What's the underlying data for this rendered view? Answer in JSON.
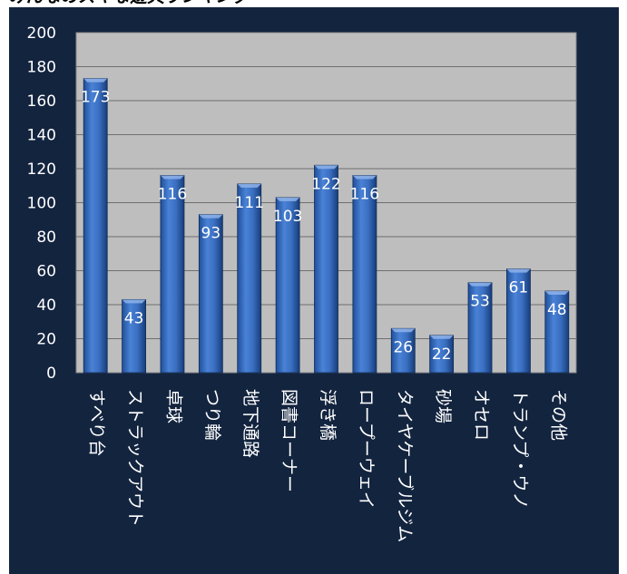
{
  "title": "みんなのスキな遊具ランキング",
  "colors": {
    "panel_background": "#13243f",
    "plot_background": "#bebebe",
    "bar_fill": "#3a6fc1",
    "gridline": "#6f6f6f",
    "label_text": "#ffffff"
  },
  "chart_data": {
    "type": "bar",
    "title": "みんなのスキな遊具ランキング",
    "xlabel": "",
    "ylabel": "",
    "ylim": [
      0,
      200
    ],
    "y_ticks": [
      0,
      20,
      40,
      60,
      80,
      100,
      120,
      140,
      160,
      180,
      200
    ],
    "grid": true,
    "legend": "none",
    "categories": [
      "すべり台",
      "ストラックアウト",
      "卓球",
      "つり輪",
      "地下通路",
      "図書コーナー",
      "浮き橋",
      "ロープーウェイ",
      "タイヤケーブルジム",
      "砂場",
      "オセロ",
      "トランプ・ウノ",
      "その他"
    ],
    "values": [
      173,
      43,
      116,
      93,
      111,
      103,
      122,
      116,
      26,
      22,
      53,
      61,
      48
    ],
    "data_labels": [
      "173",
      "43",
      "116",
      "93",
      "111",
      "103",
      "122",
      "116",
      "26",
      "22",
      "53",
      "61",
      "48"
    ]
  }
}
